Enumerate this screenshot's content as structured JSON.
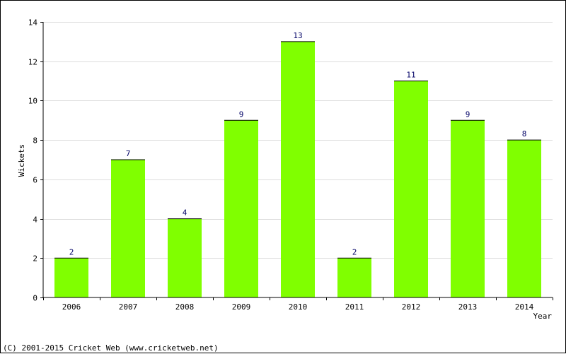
{
  "chart_data": {
    "type": "bar",
    "categories": [
      "2006",
      "2007",
      "2008",
      "2009",
      "2010",
      "2011",
      "2012",
      "2013",
      "2014"
    ],
    "values": [
      2,
      7,
      4,
      9,
      13,
      2,
      11,
      9,
      8
    ],
    "title": "",
    "xlabel": "Year",
    "ylabel": "Wickets",
    "ylim": [
      0,
      14
    ],
    "yticks": [
      0,
      2,
      4,
      6,
      8,
      10,
      12,
      14
    ],
    "grid": true,
    "data_labels": true,
    "colors": {
      "bar": "#80ff00",
      "grid": "#dddddd",
      "data_label": "#000066",
      "axis": "#000000"
    }
  },
  "footer": {
    "copyright": "(C) 2001-2015 Cricket Web (www.cricketweb.net)"
  }
}
